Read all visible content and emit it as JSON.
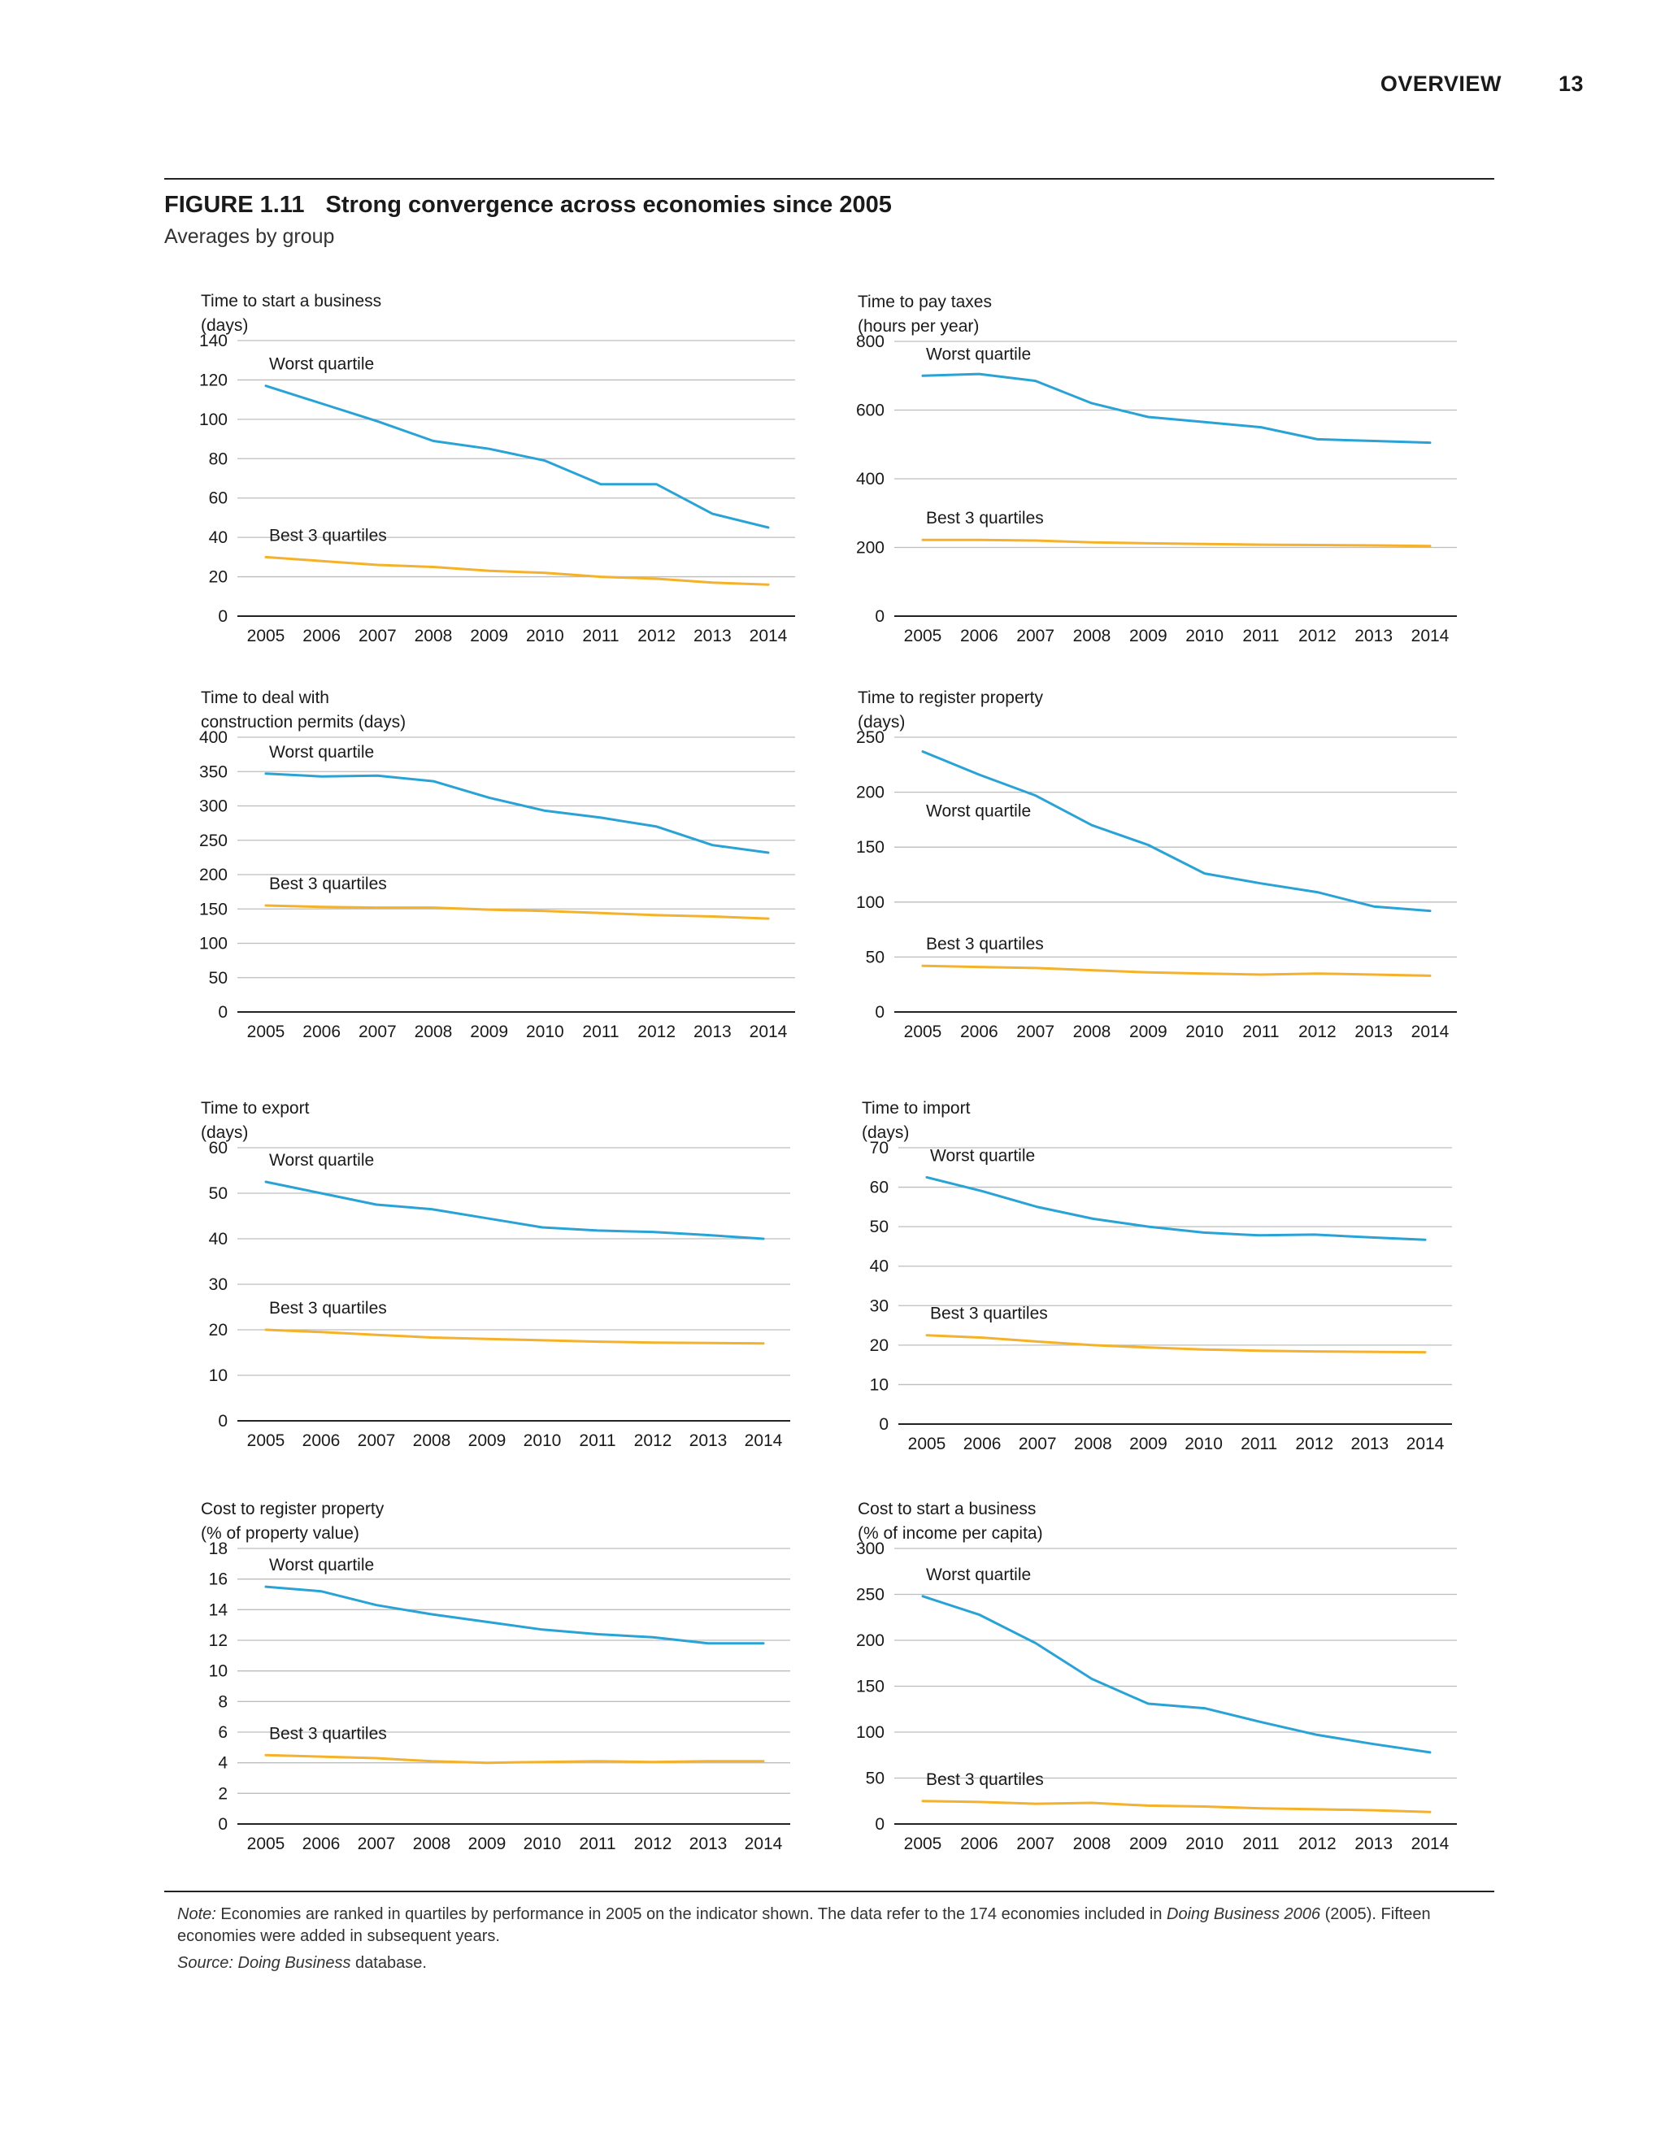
{
  "header": {
    "section": "OVERVIEW",
    "page_number": "13"
  },
  "figure": {
    "label": "FIGURE 1.11",
    "title": "Strong convergence across economies since 2005",
    "subtitle": "Averages by group"
  },
  "note": {
    "label": "Note:",
    "text_1": " Economies are ranked in quartiles by performance in 2005 on the indicator shown. The data refer to the 174 economies included in ",
    "publication": "Doing Business 2006",
    "text_2": " (2005). Fifteen economies were added in subsequent years."
  },
  "source": {
    "label": "Source:",
    "database_name": "Doing Business",
    "text": " database."
  },
  "colors": {
    "worst": "#29a3d6",
    "best": "#f5b129",
    "grid": "#bdbdbd",
    "axis": "#222222"
  },
  "chart_data": [
    {
      "type": "line",
      "title_lines": [
        "Time to start a business",
        "(days)"
      ],
      "x": [
        "2005",
        "2006",
        "2007",
        "2008",
        "2009",
        "2010",
        "2011",
        "2012",
        "2013",
        "2014"
      ],
      "ylim": [
        0,
        140
      ],
      "yticks": [
        0,
        20,
        40,
        60,
        80,
        100,
        120,
        140
      ],
      "series": [
        {
          "name": "Worst quartile",
          "values": [
            117,
            108,
            99,
            89,
            85,
            79,
            67,
            67,
            52,
            45
          ]
        },
        {
          "name": "Best 3 quartiles",
          "values": [
            30,
            28,
            26,
            25,
            23,
            22,
            20,
            19,
            17,
            16
          ]
        }
      ]
    },
    {
      "type": "line",
      "title_lines": [
        "Time to pay taxes",
        "(hours per year)"
      ],
      "x": [
        "2005",
        "2006",
        "2007",
        "2008",
        "2009",
        "2010",
        "2011",
        "2012",
        "2013",
        "2014"
      ],
      "ylim": [
        0,
        800
      ],
      "yticks": [
        0,
        200,
        400,
        600,
        800
      ],
      "series": [
        {
          "name": "Worst quartile",
          "values": [
            700,
            705,
            685,
            620,
            580,
            565,
            550,
            515,
            510,
            505
          ]
        },
        {
          "name": "Best 3 quartiles",
          "values": [
            222,
            222,
            220,
            215,
            212,
            210,
            208,
            207,
            206,
            204
          ]
        }
      ]
    },
    {
      "type": "line",
      "title_lines": [
        "Time to deal with",
        "construction permits (days)"
      ],
      "x": [
        "2005",
        "2006",
        "2007",
        "2008",
        "2009",
        "2010",
        "2011",
        "2012",
        "2013",
        "2014"
      ],
      "ylim": [
        0,
        400
      ],
      "yticks": [
        0,
        50,
        100,
        150,
        200,
        250,
        300,
        350,
        400
      ],
      "series": [
        {
          "name": "Worst quartile",
          "values": [
            347,
            343,
            344,
            336,
            312,
            293,
            283,
            270,
            243,
            232
          ]
        },
        {
          "name": "Best 3 quartiles",
          "values": [
            155,
            153,
            152,
            152,
            149,
            147,
            144,
            141,
            139,
            136
          ]
        }
      ]
    },
    {
      "type": "line",
      "title_lines": [
        "Time to register property",
        "(days)"
      ],
      "x": [
        "2005",
        "2006",
        "2007",
        "2008",
        "2009",
        "2010",
        "2011",
        "2012",
        "2013",
        "2014"
      ],
      "ylim": [
        0,
        250
      ],
      "yticks": [
        0,
        50,
        100,
        150,
        200,
        250
      ],
      "series": [
        {
          "name": "Worst quartile",
          "values": [
            237,
            216,
            197,
            170,
            152,
            126,
            117,
            109,
            96,
            92
          ]
        },
        {
          "name": "Best 3 quartiles",
          "values": [
            42,
            41,
            40,
            38,
            36,
            35,
            34,
            35,
            34,
            33
          ]
        }
      ]
    },
    {
      "type": "line",
      "title_lines": [
        "Time to export",
        "(days)"
      ],
      "x": [
        "2005",
        "2006",
        "2007",
        "2008",
        "2009",
        "2010",
        "2011",
        "2012",
        "2013",
        "2014"
      ],
      "ylim": [
        0,
        60
      ],
      "yticks": [
        0,
        10,
        20,
        30,
        40,
        50,
        60
      ],
      "series": [
        {
          "name": "Worst quartile",
          "values": [
            52.5,
            50,
            47.5,
            46.5,
            44.5,
            42.5,
            41.8,
            41.5,
            40.8,
            40
          ]
        },
        {
          "name": "Best 3 quartiles",
          "values": [
            20,
            19.5,
            18.9,
            18.3,
            18,
            17.7,
            17.4,
            17.2,
            17.1,
            17
          ]
        }
      ]
    },
    {
      "type": "line",
      "title_lines": [
        "Time to import",
        "(days)"
      ],
      "x": [
        "2005",
        "2006",
        "2007",
        "2008",
        "2009",
        "2010",
        "2011",
        "2012",
        "2013",
        "2014"
      ],
      "ylim": [
        0,
        70
      ],
      "yticks": [
        0,
        10,
        20,
        30,
        40,
        50,
        60,
        70
      ],
      "series": [
        {
          "name": "Worst quartile",
          "values": [
            62.5,
            59,
            55,
            52,
            50,
            48.5,
            47.8,
            48,
            47.3,
            46.7
          ]
        },
        {
          "name": "Best 3 quartiles",
          "values": [
            22.5,
            21.9,
            20.9,
            20,
            19.4,
            18.9,
            18.6,
            18.4,
            18.3,
            18.2
          ]
        }
      ]
    },
    {
      "type": "line",
      "title_lines": [
        "Cost to register property",
        "(% of property value)"
      ],
      "x": [
        "2005",
        "2006",
        "2007",
        "2008",
        "2009",
        "2010",
        "2011",
        "2012",
        "2013",
        "2014"
      ],
      "ylim": [
        0,
        18
      ],
      "yticks": [
        0,
        2,
        4,
        6,
        8,
        10,
        12,
        14,
        16,
        18
      ],
      "series": [
        {
          "name": "Worst quartile",
          "values": [
            15.5,
            15.2,
            14.3,
            13.7,
            13.2,
            12.7,
            12.4,
            12.2,
            11.8,
            11.8
          ]
        },
        {
          "name": "Best 3 quartiles",
          "values": [
            4.5,
            4.4,
            4.3,
            4.1,
            4.0,
            4.05,
            4.1,
            4.05,
            4.1,
            4.1
          ]
        }
      ]
    },
    {
      "type": "line",
      "title_lines": [
        "Cost to start a business",
        "(% of income per capita)"
      ],
      "x": [
        "2005",
        "2006",
        "2007",
        "2008",
        "2009",
        "2010",
        "2011",
        "2012",
        "2013",
        "2014"
      ],
      "ylim": [
        0,
        300
      ],
      "yticks": [
        0,
        50,
        100,
        150,
        200,
        250,
        300
      ],
      "series": [
        {
          "name": "Worst quartile",
          "values": [
            248,
            228,
            197,
            158,
            131,
            126,
            111,
            97,
            87,
            78
          ]
        },
        {
          "name": "Best 3 quartiles",
          "values": [
            25,
            24,
            22,
            23,
            20,
            19,
            17,
            16,
            15,
            13
          ]
        }
      ]
    }
  ]
}
